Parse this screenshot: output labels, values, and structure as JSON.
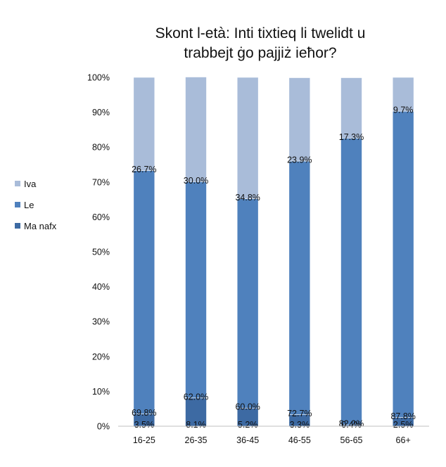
{
  "chart_data": {
    "type": "bar",
    "stacked": true,
    "title_lines": [
      "Skont l-età: Inti tixtieq li twelidt u",
      "trabbejt ġo pajjiż ieħor?"
    ],
    "categories": [
      "16-25",
      "26-35",
      "36-45",
      "46-55",
      "56-65",
      "66+"
    ],
    "y_ticks": [
      "0%",
      "10%",
      "20%",
      "30%",
      "40%",
      "50%",
      "60%",
      "70%",
      "80%",
      "90%",
      "100%"
    ],
    "ylim": [
      0,
      100
    ],
    "legend_position": "left",
    "series": [
      {
        "name": "Ma nafx",
        "color": "#3d6aa3",
        "values": [
          3.5,
          8.1,
          5.2,
          3.3,
          0.4,
          2.5
        ],
        "labels": [
          "3.5%",
          "8.1%",
          "5.2%",
          "3.3%",
          "0.4%",
          "2.5%"
        ]
      },
      {
        "name": "Le",
        "color": "#4f81bd",
        "values": [
          69.8,
          62.0,
          60.0,
          72.7,
          82.2,
          87.8
        ],
        "labels": [
          "69.8%",
          "62.0%",
          "60.0%",
          "72.7%",
          "82.2%",
          "87.8%"
        ]
      },
      {
        "name": "Iva",
        "color": "#a9bcd9",
        "values": [
          26.7,
          30.0,
          34.8,
          23.9,
          17.3,
          9.7
        ],
        "labels": [
          "26.7%",
          "30.0%",
          "34.8%",
          "23.9%",
          "17.3%",
          "9.7%"
        ]
      }
    ],
    "legend_order": [
      "Iva",
      "Le",
      "Ma nafx"
    ]
  }
}
